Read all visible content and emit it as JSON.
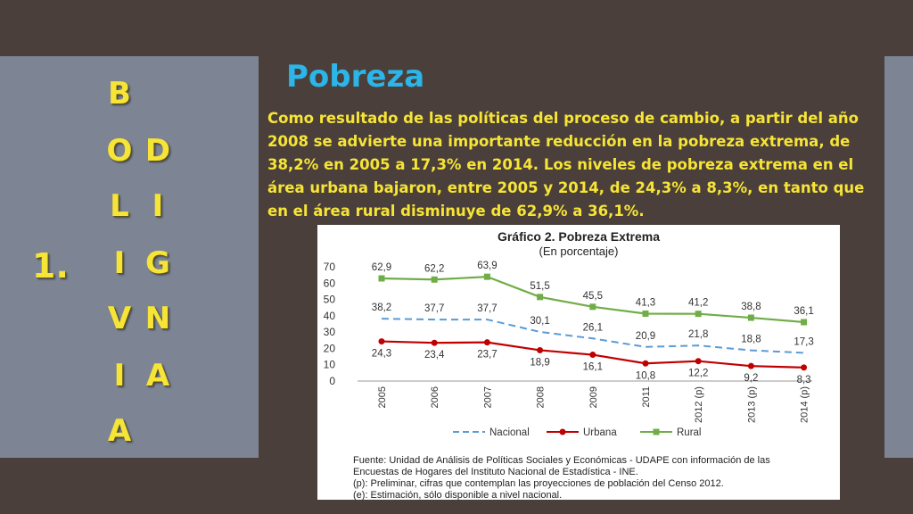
{
  "slide": {
    "number": "1.",
    "column_left": [
      "B",
      "O",
      "L",
      "I",
      "V",
      "I",
      "A"
    ],
    "column_right": [
      "D",
      "I",
      "G",
      "N",
      "A"
    ],
    "title": "Pobreza",
    "paragraph": "Como resultado de las políticas del proceso de cambio, a partir del año 2008 se advierte una importante reducción en la pobreza extrema, de 38,2% en 2005 a 17,3% en 2014. Los niveles de pobreza extrema en el área urbana bajaron, entre 2005 y 2014, de 24,3% a 8,3%, en tanto que en el área rural disminuye de 62,9% a 36,1%.",
    "colors": {
      "background": "#4a3f3a",
      "panel": "#7d8594",
      "title": "#2bb5e8",
      "text": "#f6e436"
    }
  },
  "chart_data": {
    "type": "line",
    "title": "Gráfico 2. Pobreza Extrema",
    "subtitle": "(En porcentaje)",
    "categories": [
      "2005",
      "2006",
      "2007",
      "2008",
      "2009",
      "2011",
      "2012 (p)",
      "2013 (p)",
      "2014 (p)"
    ],
    "ylim": [
      0,
      70
    ],
    "yticks": [
      "0",
      "10",
      "20",
      "30",
      "40",
      "50",
      "60",
      "70"
    ],
    "series": [
      {
        "name": "Nacional",
        "color": "#5b9bd5",
        "style": "dashed",
        "values": [
          38.2,
          37.7,
          37.7,
          30.1,
          26.1,
          20.9,
          21.8,
          18.8,
          17.3
        ],
        "labels": [
          "38,2",
          "37,7",
          "37,7",
          "30,1",
          "26,1",
          "20,9",
          "21,8",
          "18,8",
          "17,3"
        ]
      },
      {
        "name": "Urbana",
        "color": "#c00000",
        "style": "solid",
        "values": [
          24.3,
          23.4,
          23.7,
          18.9,
          16.1,
          10.8,
          12.2,
          9.2,
          8.3
        ],
        "labels": [
          "24,3",
          "23,4",
          "23,7",
          "18,9",
          "16,1",
          "10,8",
          "12,2",
          "9,2",
          "8,3"
        ]
      },
      {
        "name": "Rural",
        "color": "#70ad47",
        "style": "solid",
        "values": [
          62.9,
          62.2,
          63.9,
          51.5,
          45.5,
          41.3,
          41.2,
          38.8,
          36.1
        ],
        "labels": [
          "62,9",
          "62,2",
          "63,9",
          "51,5",
          "45,5",
          "41,3",
          "41,2",
          "38,8",
          "36,1"
        ]
      }
    ],
    "legend": "bottom",
    "source_lines": [
      "Fuente: Unidad de Análisis de Políticas Sociales y Económicas - UDAPE con información de las",
      "Encuestas de Hogares del Instituto Nacional de Estadística - INE.",
      "(p): Preliminar, cifras que contemplan las proyecciones de población del Censo 2012.",
      "(e): Estimación, sólo disponible a nivel nacional."
    ]
  }
}
